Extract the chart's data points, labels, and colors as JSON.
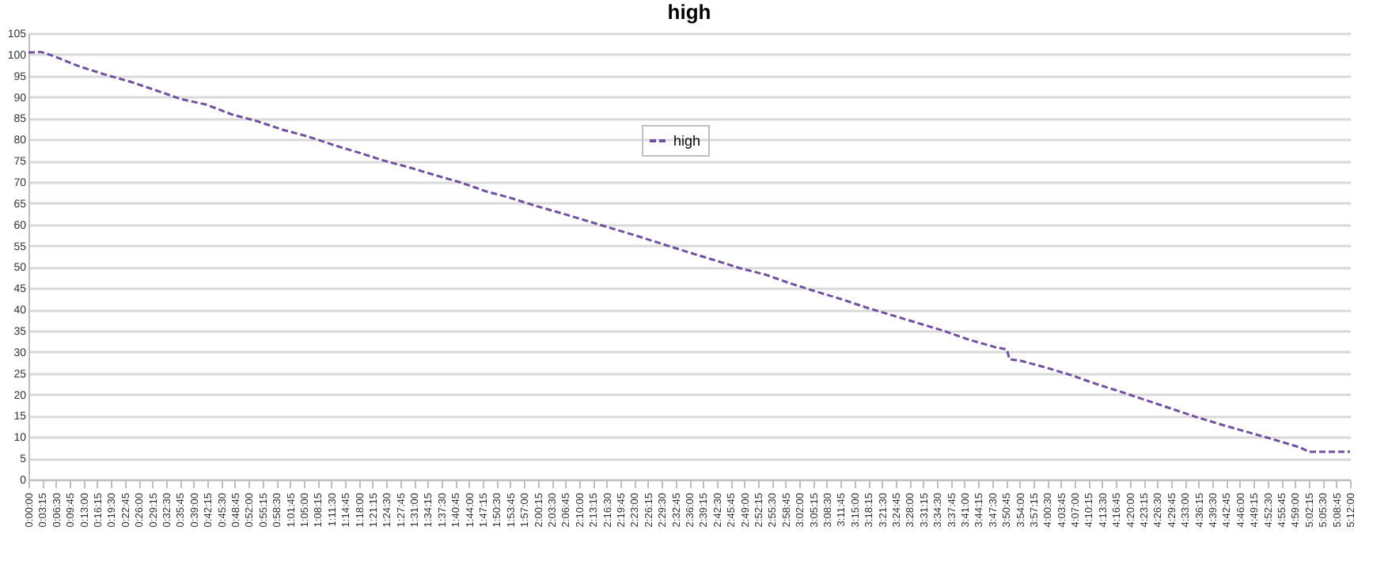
{
  "chart_data": {
    "type": "line",
    "title": "high",
    "x": [
      0,
      0.05,
      0.1,
      0.2,
      0.3,
      0.4,
      0.5,
      0.6,
      0.7,
      0.8,
      0.9,
      1.0,
      1.1,
      1.2,
      1.3,
      1.4,
      1.5,
      1.6,
      1.7,
      1.8,
      1.9,
      2.0,
      2.1,
      2.2,
      2.3,
      2.4,
      2.5,
      2.6,
      2.7,
      2.8,
      2.9,
      3.0,
      3.1,
      3.2,
      3.3,
      3.4,
      3.5,
      3.6,
      3.7,
      3.8,
      3.85,
      3.86,
      3.9,
      4.0,
      4.1,
      4.2,
      4.3,
      4.4,
      4.5,
      4.6,
      4.7,
      4.8,
      4.9,
      5.0,
      5.04,
      5.2
    ],
    "series": [
      {
        "name": "high",
        "color": "#7050a0",
        "values": [
          100.5,
          100.6,
          99.6,
          97.2,
          95.3,
          93.6,
          91.6,
          89.5,
          88.2,
          85.9,
          84.3,
          82.3,
          80.7,
          78.7,
          76.9,
          75.0,
          73.4,
          71.6,
          69.9,
          67.8,
          66.2,
          64.3,
          62.6,
          60.8,
          59.0,
          57.2,
          55.3,
          53.4,
          51.6,
          49.7,
          48.2,
          46.1,
          44.2,
          42.4,
          40.4,
          38.6,
          36.8,
          35.0,
          32.9,
          31.2,
          30.6,
          28.3,
          28.0,
          26.4,
          24.6,
          22.5,
          20.6,
          18.6,
          16.6,
          14.6,
          12.8,
          11.1,
          9.4,
          7.6,
          6.5,
          6.5
        ]
      }
    ],
    "xlim": [
      0,
      5.2
    ],
    "xticks": [
      {
        "value": 0,
        "label": "0:00:00"
      },
      {
        "value": 0.0542,
        "label": "0:03:15"
      },
      {
        "value": 0.1083,
        "label": "0:06:30"
      },
      {
        "value": 0.1625,
        "label": "0:09:45"
      },
      {
        "value": 0.2167,
        "label": "0:13:00"
      },
      {
        "value": 0.2708,
        "label": "0:16:15"
      },
      {
        "value": 0.325,
        "label": "0:19:30"
      },
      {
        "value": 0.3792,
        "label": "0:22:45"
      },
      {
        "value": 0.4333,
        "label": "0:26:00"
      },
      {
        "value": 0.4875,
        "label": "0:29:15"
      },
      {
        "value": 0.5417,
        "label": "0:32:30"
      },
      {
        "value": 0.5958,
        "label": "0:35:45"
      },
      {
        "value": 0.65,
        "label": "0:39:00"
      },
      {
        "value": 0.7042,
        "label": "0:42:15"
      },
      {
        "value": 0.7583,
        "label": "0:45:30"
      },
      {
        "value": 0.8125,
        "label": "0:48:45"
      },
      {
        "value": 0.8667,
        "label": "0:52:00"
      },
      {
        "value": 0.9208,
        "label": "0:55:15"
      },
      {
        "value": 0.975,
        "label": "0:58:30"
      },
      {
        "value": 1.0292,
        "label": "1:01:45"
      },
      {
        "value": 1.0833,
        "label": "1:05:00"
      },
      {
        "value": 1.1375,
        "label": "1:08:15"
      },
      {
        "value": 1.1917,
        "label": "1:11:30"
      },
      {
        "value": 1.2458,
        "label": "1:14:45"
      },
      {
        "value": 1.3,
        "label": "1:18:00"
      },
      {
        "value": 1.3542,
        "label": "1:21:15"
      },
      {
        "value": 1.4083,
        "label": "1:24:30"
      },
      {
        "value": 1.4625,
        "label": "1:27:45"
      },
      {
        "value": 1.5167,
        "label": "1:31:00"
      },
      {
        "value": 1.5708,
        "label": "1:34:15"
      },
      {
        "value": 1.625,
        "label": "1:37:30"
      },
      {
        "value": 1.6792,
        "label": "1:40:45"
      },
      {
        "value": 1.7333,
        "label": "1:44:00"
      },
      {
        "value": 1.7875,
        "label": "1:47:15"
      },
      {
        "value": 1.8417,
        "label": "1:50:30"
      },
      {
        "value": 1.8958,
        "label": "1:53:45"
      },
      {
        "value": 1.95,
        "label": "1:57:00"
      },
      {
        "value": 2.0042,
        "label": "2:00:15"
      },
      {
        "value": 2.0583,
        "label": "2:03:30"
      },
      {
        "value": 2.1125,
        "label": "2:06:45"
      },
      {
        "value": 2.1667,
        "label": "2:10:00"
      },
      {
        "value": 2.2208,
        "label": "2:13:15"
      },
      {
        "value": 2.275,
        "label": "2:16:30"
      },
      {
        "value": 2.3292,
        "label": "2:19:45"
      },
      {
        "value": 2.3833,
        "label": "2:23:00"
      },
      {
        "value": 2.4375,
        "label": "2:26:15"
      },
      {
        "value": 2.4917,
        "label": "2:29:30"
      },
      {
        "value": 2.5458,
        "label": "2:32:45"
      },
      {
        "value": 2.6,
        "label": "2:36:00"
      },
      {
        "value": 2.6542,
        "label": "2:39:15"
      },
      {
        "value": 2.7083,
        "label": "2:42:30"
      },
      {
        "value": 2.7625,
        "label": "2:45:45"
      },
      {
        "value": 2.8167,
        "label": "2:49:00"
      },
      {
        "value": 2.8708,
        "label": "2:52:15"
      },
      {
        "value": 2.925,
        "label": "2:55:30"
      },
      {
        "value": 2.9792,
        "label": "2:58:45"
      },
      {
        "value": 3.0333,
        "label": "3:02:00"
      },
      {
        "value": 3.0875,
        "label": "3:05:15"
      },
      {
        "value": 3.1417,
        "label": "3:08:30"
      },
      {
        "value": 3.1958,
        "label": "3:11:45"
      },
      {
        "value": 3.25,
        "label": "3:15:00"
      },
      {
        "value": 3.3042,
        "label": "3:18:15"
      },
      {
        "value": 3.3583,
        "label": "3:21:30"
      },
      {
        "value": 3.4125,
        "label": "3:24:45"
      },
      {
        "value": 3.4667,
        "label": "3:28:00"
      },
      {
        "value": 3.5208,
        "label": "3:31:15"
      },
      {
        "value": 3.575,
        "label": "3:34:30"
      },
      {
        "value": 3.6292,
        "label": "3:37:45"
      },
      {
        "value": 3.6833,
        "label": "3:41:00"
      },
      {
        "value": 3.7375,
        "label": "3:44:15"
      },
      {
        "value": 3.7917,
        "label": "3:47:30"
      },
      {
        "value": 3.8458,
        "label": "3:50:45"
      },
      {
        "value": 3.9,
        "label": "3:54:00"
      },
      {
        "value": 3.9542,
        "label": "3:57:15"
      },
      {
        "value": 4.0083,
        "label": "4:00:30"
      },
      {
        "value": 4.0625,
        "label": "4:03:45"
      },
      {
        "value": 4.1167,
        "label": "4:07:00"
      },
      {
        "value": 4.1708,
        "label": "4:10:15"
      },
      {
        "value": 4.225,
        "label": "4:13:30"
      },
      {
        "value": 4.2792,
        "label": "4:16:45"
      },
      {
        "value": 4.3333,
        "label": "4:20:00"
      },
      {
        "value": 4.3875,
        "label": "4:23:15"
      },
      {
        "value": 4.4417,
        "label": "4:26:30"
      },
      {
        "value": 4.4958,
        "label": "4:29:45"
      },
      {
        "value": 4.55,
        "label": "4:33:00"
      },
      {
        "value": 4.6042,
        "label": "4:36:15"
      },
      {
        "value": 4.6583,
        "label": "4:39:30"
      },
      {
        "value": 4.7125,
        "label": "4:42:45"
      },
      {
        "value": 4.7667,
        "label": "4:46:00"
      },
      {
        "value": 4.8208,
        "label": "4:49:15"
      },
      {
        "value": 4.875,
        "label": "4:52:30"
      },
      {
        "value": 4.9292,
        "label": "4:55:45"
      },
      {
        "value": 4.9833,
        "label": "4:59:00"
      },
      {
        "value": 5.0375,
        "label": "5:02:15"
      },
      {
        "value": 5.0917,
        "label": "5:05:30"
      },
      {
        "value": 5.1458,
        "label": "5:08:45"
      },
      {
        "value": 5.2,
        "label": "5:12:00"
      }
    ],
    "ylim": [
      0,
      105
    ],
    "yticks": [
      0,
      5,
      10,
      15,
      20,
      25,
      30,
      35,
      40,
      45,
      50,
      55,
      60,
      65,
      70,
      75,
      80,
      85,
      90,
      95,
      100,
      105
    ],
    "grid": "y",
    "legend": "top",
    "line_style": "dashed",
    "marker": "none"
  }
}
